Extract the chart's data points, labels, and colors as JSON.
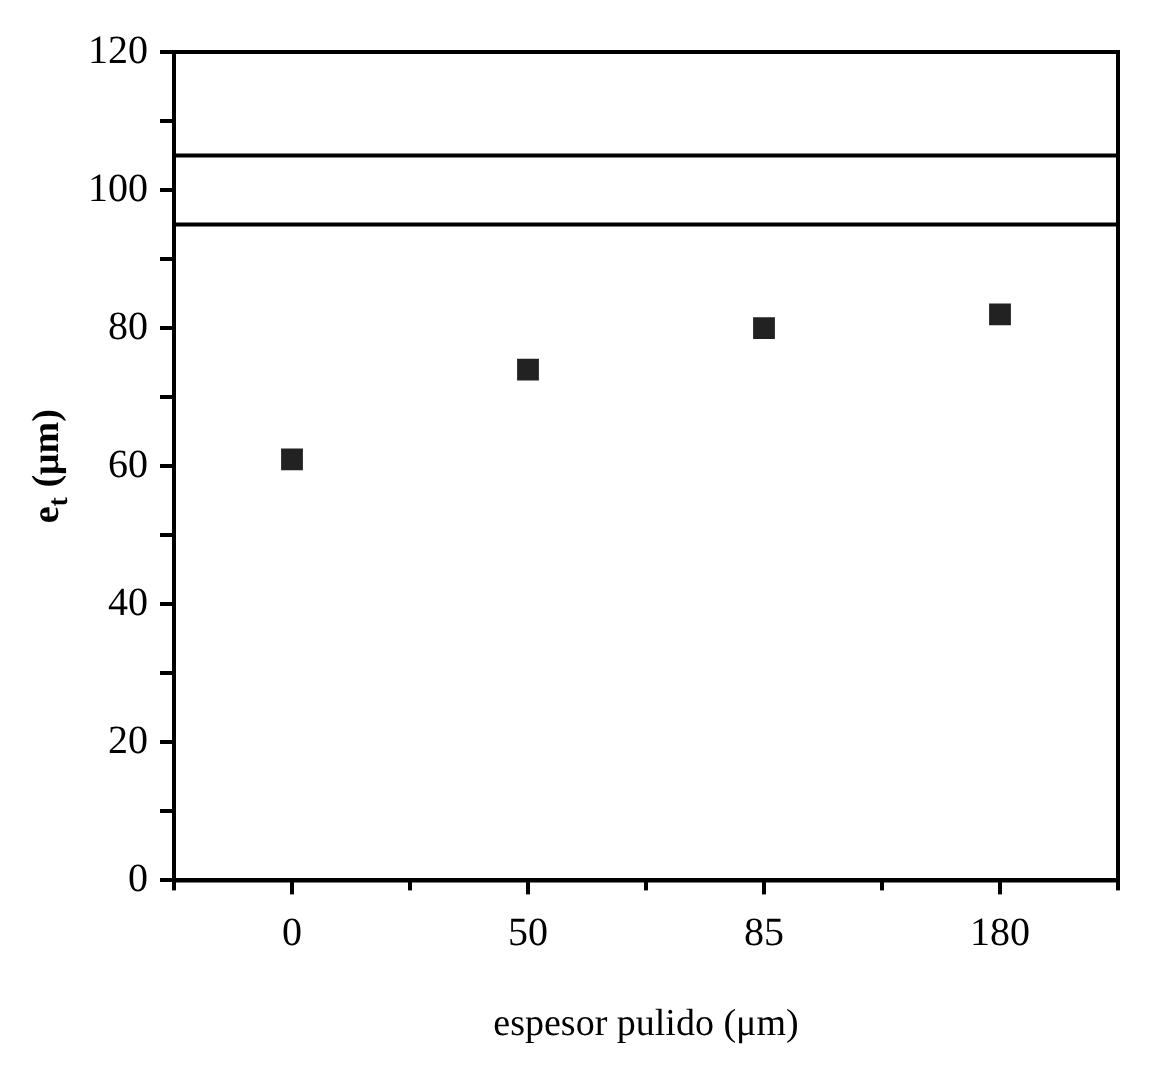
{
  "chart_data": {
    "type": "scatter",
    "xlabel": "espesor pulido (μm)",
    "ylabel": "e$_{t}$ (μm)",
    "categories": [
      "0",
      "50",
      "85",
      "180"
    ],
    "series": [
      {
        "color": "#222222",
        "values": [
          61,
          74,
          80,
          82
        ]
      }
    ],
    "ylim": [
      0,
      120
    ],
    "yticks": [
      0,
      {
        "value": 10,
        "label": null
      },
      20,
      {
        "value": 30,
        "label": null
      },
      40,
      {
        "value": 50,
        "label": null
      },
      60,
      {
        "value": 70,
        "label": null
      },
      80,
      {
        "value": 90,
        "label": null
      },
      100,
      {
        "value": 110,
        "label": null
      },
      120
    ],
    "ref_lines": [
      {
        "axis": "y",
        "value": 105,
        "color": "#000000"
      },
      {
        "axis": "y",
        "value": 95,
        "color": "#000000"
      }
    ],
    "marker": "square",
    "grid": false,
    "legend": false
  }
}
